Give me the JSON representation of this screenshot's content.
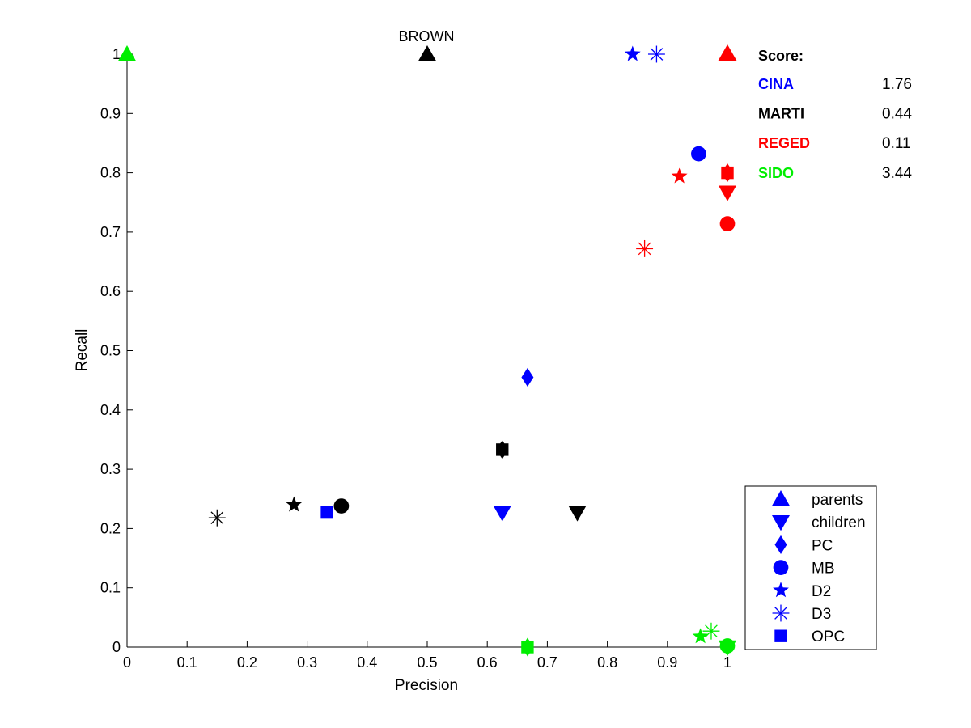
{
  "chart_data": {
    "type": "scatter",
    "title": "BROWN",
    "xlabel": "Precision",
    "ylabel": "Recall",
    "xlim": [
      0,
      1
    ],
    "ylim": [
      0,
      1
    ],
    "xticks": [
      "0",
      "0.1",
      "0.2",
      "0.3",
      "0.4",
      "0.5",
      "0.6",
      "0.7",
      "0.8",
      "0.9",
      "1"
    ],
    "yticks": [
      "0",
      "0.1",
      "0.2",
      "0.3",
      "0.4",
      "0.5",
      "0.6",
      "0.7",
      "0.8",
      "0.9",
      "1"
    ],
    "grid": false,
    "legend": {
      "placement": "bottom-right",
      "entries": [
        {
          "label": "parents",
          "marker": "triangle-up"
        },
        {
          "label": "children",
          "marker": "triangle-down"
        },
        {
          "label": "PC",
          "marker": "diamond"
        },
        {
          "label": "MB",
          "marker": "circle"
        },
        {
          "label": "D2",
          "marker": "star"
        },
        {
          "label": "D3",
          "marker": "asterisk"
        },
        {
          "label": "OPC",
          "marker": "square"
        }
      ],
      "marker_color": "#0000ff"
    },
    "score_panel": {
      "header": "Score:",
      "header_marker": "triangle-up",
      "header_marker_color": "#ff0000",
      "rows": [
        {
          "name": "CINA",
          "score": "1.76",
          "color": "#0000ff"
        },
        {
          "name": "MARTI",
          "score": "0.44",
          "color": "#000000"
        },
        {
          "name": "REGED",
          "score": "0.11",
          "color": "#ff0000"
        },
        {
          "name": "SIDO",
          "score": "3.44",
          "color": "#00ee00"
        }
      ]
    },
    "series": [
      {
        "dataset": "CINA",
        "color": "#0000ff",
        "points": [
          {
            "method": "D2",
            "marker": "star",
            "x": 0.842,
            "y": 1.0
          },
          {
            "method": "D3",
            "marker": "asterisk",
            "x": 0.882,
            "y": 1.0
          },
          {
            "method": "MB",
            "marker": "circle",
            "x": 0.952,
            "y": 0.832
          },
          {
            "method": "PC",
            "marker": "diamond",
            "x": 0.667,
            "y": 0.455
          },
          {
            "method": "children",
            "marker": "triangle-down",
            "x": 0.625,
            "y": 0.227
          },
          {
            "method": "OPC",
            "marker": "square",
            "x": 0.333,
            "y": 0.227
          }
        ]
      },
      {
        "dataset": "MARTI",
        "color": "#000000",
        "points": [
          {
            "method": "parents",
            "marker": "triangle-up",
            "x": 0.5,
            "y": 1.0
          },
          {
            "method": "PC",
            "marker": "diamond",
            "x": 0.625,
            "y": 0.333
          },
          {
            "method": "OPC",
            "marker": "square",
            "x": 0.625,
            "y": 0.333
          },
          {
            "method": "children",
            "marker": "triangle-down",
            "x": 0.75,
            "y": 0.227
          },
          {
            "method": "MB",
            "marker": "circle",
            "x": 0.357,
            "y": 0.238
          },
          {
            "method": "D2",
            "marker": "star",
            "x": 0.278,
            "y": 0.24
          },
          {
            "method": "D3",
            "marker": "asterisk",
            "x": 0.15,
            "y": 0.218
          }
        ]
      },
      {
        "dataset": "REGED",
        "color": "#ff0000",
        "points": [
          {
            "method": "PC",
            "marker": "diamond",
            "x": 1.0,
            "y": 0.8
          },
          {
            "method": "OPC",
            "marker": "square",
            "x": 1.0,
            "y": 0.8
          },
          {
            "method": "children",
            "marker": "triangle-down",
            "x": 1.0,
            "y": 0.767
          },
          {
            "method": "MB",
            "marker": "circle",
            "x": 1.0,
            "y": 0.714
          },
          {
            "method": "D2",
            "marker": "star",
            "x": 0.92,
            "y": 0.794
          },
          {
            "method": "D3",
            "marker": "asterisk",
            "x": 0.862,
            "y": 0.672
          }
        ]
      },
      {
        "dataset": "SIDO",
        "color": "#00ee00",
        "points": [
          {
            "method": "parents",
            "marker": "triangle-up",
            "x": 0.0,
            "y": 1.0
          },
          {
            "method": "PC",
            "marker": "diamond",
            "x": 0.667,
            "y": 0.0
          },
          {
            "method": "OPC",
            "marker": "square",
            "x": 0.667,
            "y": 0.0
          },
          {
            "method": "D2",
            "marker": "star",
            "x": 0.955,
            "y": 0.018
          },
          {
            "method": "D3",
            "marker": "asterisk",
            "x": 0.973,
            "y": 0.027
          },
          {
            "method": "MB",
            "marker": "circle",
            "x": 1.0,
            "y": 0.002
          },
          {
            "method": "children",
            "marker": "triangle-down",
            "x": 1.0,
            "y": 0.0
          }
        ]
      }
    ]
  }
}
